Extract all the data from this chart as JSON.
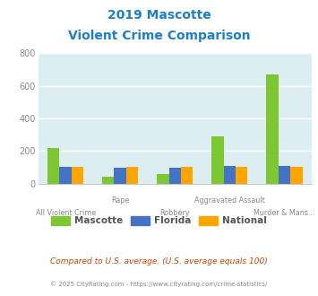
{
  "title_line1": "2019 Mascotte",
  "title_line2": "Violent Crime Comparison",
  "categories": [
    "All Violent Crime",
    "Rape",
    "Robbery",
    "Aggravated Assault",
    "Murder & Mans..."
  ],
  "cat_labels_lower": [
    "All Violent Crime",
    "Robbery",
    "Murder & Mans..."
  ],
  "cat_labels_upper": [
    "Rape",
    "Aggravated Assault"
  ],
  "cat_lower_idx": [
    0,
    2,
    4
  ],
  "cat_upper_idx": [
    1,
    3
  ],
  "mascotte": [
    220,
    40,
    60,
    290,
    670
  ],
  "florida": [
    100,
    95,
    95,
    110,
    110
  ],
  "national": [
    100,
    100,
    100,
    100,
    100
  ],
  "mascotte_color": "#7dc832",
  "florida_color": "#4472c4",
  "national_color": "#ffa500",
  "bg_color": "#ddeef3",
  "title_color": "#1e7fc2",
  "tick_color": "#888888",
  "ylim": [
    0,
    800
  ],
  "yticks": [
    0,
    200,
    400,
    600,
    800
  ],
  "footnote1": "Compared to U.S. average. (U.S. average equals 100)",
  "footnote2": "© 2025 CityRating.com - https://www.cityrating.com/crime-statistics/",
  "footnote1_color": "#cc4400",
  "footnote2_color": "#888888",
  "legend_labels": [
    "Mascotte",
    "Florida",
    "National"
  ],
  "bar_width": 0.22
}
